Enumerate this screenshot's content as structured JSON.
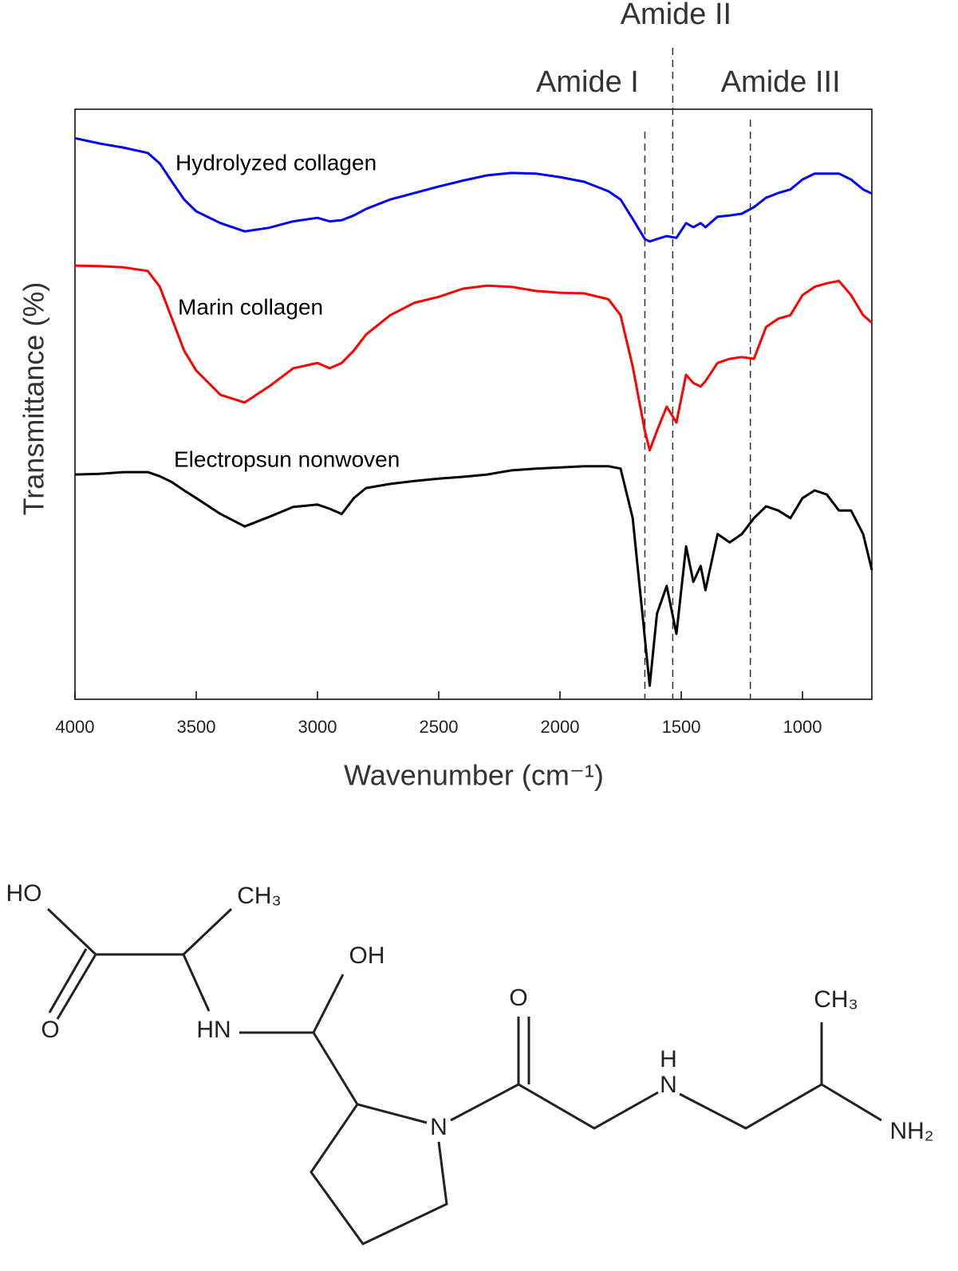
{
  "chart_data": {
    "type": "line",
    "xlabel": "Wavenumber (cm⁻¹)",
    "ylabel": "Transmittance (%)",
    "x": [
      4000,
      3900,
      3800,
      3700,
      3650,
      3600,
      3550,
      3500,
      3400,
      3300,
      3200,
      3100,
      3000,
      2950,
      2900,
      2850,
      2800,
      2700,
      2600,
      2500,
      2400,
      2300,
      2200,
      2100,
      2000,
      1900,
      1800,
      1750,
      1700,
      1650,
      1630,
      1600,
      1560,
      1520,
      1480,
      1450,
      1420,
      1400,
      1350,
      1300,
      1250,
      1200,
      1150,
      1100,
      1050,
      1000,
      950,
      900,
      850,
      800,
      750,
      714
    ],
    "series": [
      {
        "name": "Hydrolyzed collagen",
        "color": "#0000ff",
        "values": [
          95.1,
          94.2,
          93.5,
          92.6,
          90.8,
          87.7,
          84.7,
          82.7,
          80.7,
          79.3,
          79.9,
          81.0,
          81.6,
          81.0,
          81.2,
          82.0,
          83.1,
          84.7,
          85.8,
          86.9,
          87.9,
          88.8,
          89.2,
          89.1,
          88.5,
          87.7,
          86.1,
          84.7,
          81.4,
          78.0,
          77.6,
          78.0,
          78.5,
          78.2,
          80.7,
          80.0,
          80.7,
          80.0,
          81.8,
          82.0,
          82.3,
          83.4,
          85.0,
          85.8,
          86.4,
          88.1,
          89.1,
          89.1,
          89.1,
          88.1,
          86.4,
          85.7
        ]
      },
      {
        "name": "Marin collagen",
        "color": "#ff0000",
        "values": [
          73.5,
          73.4,
          73.2,
          72.6,
          69.9,
          64.5,
          59.1,
          55.7,
          51.6,
          50.3,
          53.0,
          56.1,
          57.0,
          56.1,
          57.0,
          59.1,
          61.8,
          65.1,
          67.2,
          68.2,
          69.6,
          70.1,
          69.9,
          69.2,
          68.9,
          68.8,
          67.8,
          65.1,
          56.4,
          45.5,
          42.2,
          45.5,
          49.6,
          46.9,
          55.0,
          53.6,
          53.0,
          53.9,
          57.0,
          57.7,
          58.0,
          57.7,
          63.1,
          64.5,
          65.1,
          68.5,
          69.9,
          70.5,
          70.9,
          68.5,
          65.1,
          63.8
        ]
      },
      {
        "name": "Electropsun nonwoven",
        "color": "#000000",
        "values": [
          38.1,
          38.2,
          38.5,
          38.5,
          37.8,
          36.8,
          35.4,
          34.1,
          31.4,
          29.3,
          30.9,
          32.6,
          33.0,
          32.3,
          31.4,
          34.1,
          35.8,
          36.5,
          37.0,
          37.4,
          37.7,
          38.1,
          38.8,
          39.1,
          39.3,
          39.5,
          39.5,
          39.1,
          30.7,
          10.4,
          2.3,
          14.5,
          19.2,
          11.1,
          25.9,
          19.9,
          22.6,
          18.5,
          28.0,
          26.6,
          28.0,
          30.7,
          32.7,
          32.0,
          30.7,
          34.1,
          35.4,
          34.7,
          32.0,
          32.0,
          28.0,
          21.9
        ]
      }
    ],
    "xlim": [
      4000,
      714
    ],
    "ylim": [
      0,
      100
    ],
    "xticks": [
      4000,
      3500,
      3000,
      2500,
      2000,
      1500,
      1000
    ],
    "annotations": [
      {
        "text": "Amide I",
        "x": 1650
      },
      {
        "text": "Amide II",
        "x": 1535
      },
      {
        "text": "Amide III",
        "x": 1215
      }
    ]
  },
  "structure": {
    "atoms": [
      "HO",
      "CH₃",
      "O",
      "HN",
      "OH",
      "N",
      "O",
      "H",
      "N",
      "CH₃",
      "NH₂"
    ]
  }
}
